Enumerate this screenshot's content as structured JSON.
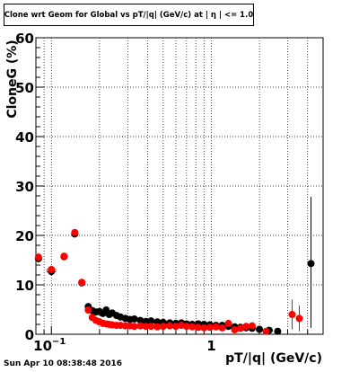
{
  "chart_data": {
    "type": "scatter",
    "title": "Clone wrt Geom for Global vs pT/|q| (GeV/c) at | η | <= 1.0",
    "xlabel": "pT/|q| (GeV/c)",
    "ylabel": "CloneG (%)",
    "x_scale": "log",
    "xlim": [
      0.08,
      5.0
    ],
    "ylim": [
      0,
      60
    ],
    "grid": true,
    "yticks": [
      "0",
      "10",
      "20",
      "30",
      "40",
      "50",
      "60"
    ],
    "xticks": [
      "10^-1",
      "1"
    ],
    "series": [
      {
        "color": "#000000",
        "points": [
          {
            "x": 0.083,
            "y": 15.3,
            "ex": 0.004,
            "ey": 0.8
          },
          {
            "x": 0.1,
            "y": 12.7,
            "ex": 0.007,
            "ey": 0.8
          },
          {
            "x": 0.12,
            "y": 15.7,
            "ex": 0.006,
            "ey": 0.6
          },
          {
            "x": 0.14,
            "y": 20.3,
            "ex": 0.005,
            "ey": 0.7
          },
          {
            "x": 0.155,
            "y": 10.4,
            "ex": 0.004,
            "ey": 0.5
          },
          {
            "x": 0.17,
            "y": 5.6
          },
          {
            "x": 0.18,
            "y": 4.8
          },
          {
            "x": 0.19,
            "y": 4.5
          },
          {
            "x": 0.2,
            "y": 4.6
          },
          {
            "x": 0.21,
            "y": 4.2
          },
          {
            "x": 0.22,
            "y": 4.9
          },
          {
            "x": 0.23,
            "y": 4.0
          },
          {
            "x": 0.24,
            "y": 4.3
          },
          {
            "x": 0.255,
            "y": 3.8
          },
          {
            "x": 0.27,
            "y": 3.5
          },
          {
            "x": 0.29,
            "y": 3.2
          },
          {
            "x": 0.31,
            "y": 3.0
          },
          {
            "x": 0.33,
            "y": 3.1
          },
          {
            "x": 0.36,
            "y": 2.8
          },
          {
            "x": 0.39,
            "y": 2.6
          },
          {
            "x": 0.42,
            "y": 2.7
          },
          {
            "x": 0.46,
            "y": 2.5
          },
          {
            "x": 0.5,
            "y": 2.4
          },
          {
            "x": 0.55,
            "y": 2.3
          },
          {
            "x": 0.6,
            "y": 2.2
          },
          {
            "x": 0.65,
            "y": 2.3
          },
          {
            "x": 0.7,
            "y": 2.1
          },
          {
            "x": 0.76,
            "y": 2.0
          },
          {
            "x": 0.83,
            "y": 2.1
          },
          {
            "x": 0.9,
            "y": 2.0
          },
          {
            "x": 0.98,
            "y": 1.9
          },
          {
            "x": 1.07,
            "y": 1.8
          },
          {
            "x": 1.17,
            "y": 1.8
          },
          {
            "x": 1.28,
            "y": 1.6
          },
          {
            "x": 1.4,
            "y": 1.5
          },
          {
            "x": 1.52,
            "y": 1.4
          },
          {
            "x": 1.65,
            "y": 1.3
          },
          {
            "x": 1.8,
            "y": 1.2
          },
          {
            "x": 2.0,
            "y": 1.0
          },
          {
            "x": 2.3,
            "y": 0.8
          },
          {
            "x": 2.6,
            "y": 0.6
          },
          {
            "x": 4.2,
            "y": 14.3,
            "ey_low": 13.0,
            "ey_high": 13.5
          }
        ]
      },
      {
        "color": "#ff0000",
        "points": [
          {
            "x": 0.083,
            "y": 15.6,
            "ex": 0.004,
            "ey": 0.8
          },
          {
            "x": 0.1,
            "y": 13.1,
            "ex": 0.007,
            "ey": 0.8
          },
          {
            "x": 0.12,
            "y": 15.8,
            "ex": 0.006,
            "ey": 0.6
          },
          {
            "x": 0.14,
            "y": 20.6,
            "ex": 0.005,
            "ey": 0.7
          },
          {
            "x": 0.155,
            "y": 10.5,
            "ex": 0.004,
            "ey": 0.5
          },
          {
            "x": 0.17,
            "y": 4.9
          },
          {
            "x": 0.18,
            "y": 3.4
          },
          {
            "x": 0.19,
            "y": 2.8
          },
          {
            "x": 0.2,
            "y": 2.5
          },
          {
            "x": 0.21,
            "y": 2.2
          },
          {
            "x": 0.22,
            "y": 2.1
          },
          {
            "x": 0.23,
            "y": 2.0
          },
          {
            "x": 0.24,
            "y": 1.9
          },
          {
            "x": 0.255,
            "y": 1.8
          },
          {
            "x": 0.27,
            "y": 1.8
          },
          {
            "x": 0.29,
            "y": 1.7
          },
          {
            "x": 0.31,
            "y": 1.7
          },
          {
            "x": 0.33,
            "y": 1.6
          },
          {
            "x": 0.36,
            "y": 1.7
          },
          {
            "x": 0.39,
            "y": 1.6
          },
          {
            "x": 0.42,
            "y": 1.6
          },
          {
            "x": 0.46,
            "y": 1.5
          },
          {
            "x": 0.5,
            "y": 1.6
          },
          {
            "x": 0.55,
            "y": 1.7
          },
          {
            "x": 0.6,
            "y": 1.6
          },
          {
            "x": 0.65,
            "y": 1.8
          },
          {
            "x": 0.7,
            "y": 1.6
          },
          {
            "x": 0.76,
            "y": 1.5
          },
          {
            "x": 0.83,
            "y": 1.4
          },
          {
            "x": 0.9,
            "y": 1.3
          },
          {
            "x": 0.98,
            "y": 1.4
          },
          {
            "x": 1.07,
            "y": 1.5
          },
          {
            "x": 1.17,
            "y": 1.3
          },
          {
            "x": 1.28,
            "y": 2.2
          },
          {
            "x": 1.4,
            "y": 0.9
          },
          {
            "x": 1.52,
            "y": 1.2
          },
          {
            "x": 1.65,
            "y": 1.6
          },
          {
            "x": 1.8,
            "y": 1.7
          },
          {
            "x": 2.2,
            "y": 0.6
          },
          {
            "x": 3.2,
            "y": 4.0,
            "ey": 3.0
          },
          {
            "x": 3.55,
            "y": 3.2,
            "ey": 2.6
          }
        ]
      }
    ]
  },
  "footer": {
    "date": "Sun Apr 10 08:38:48 2016"
  }
}
